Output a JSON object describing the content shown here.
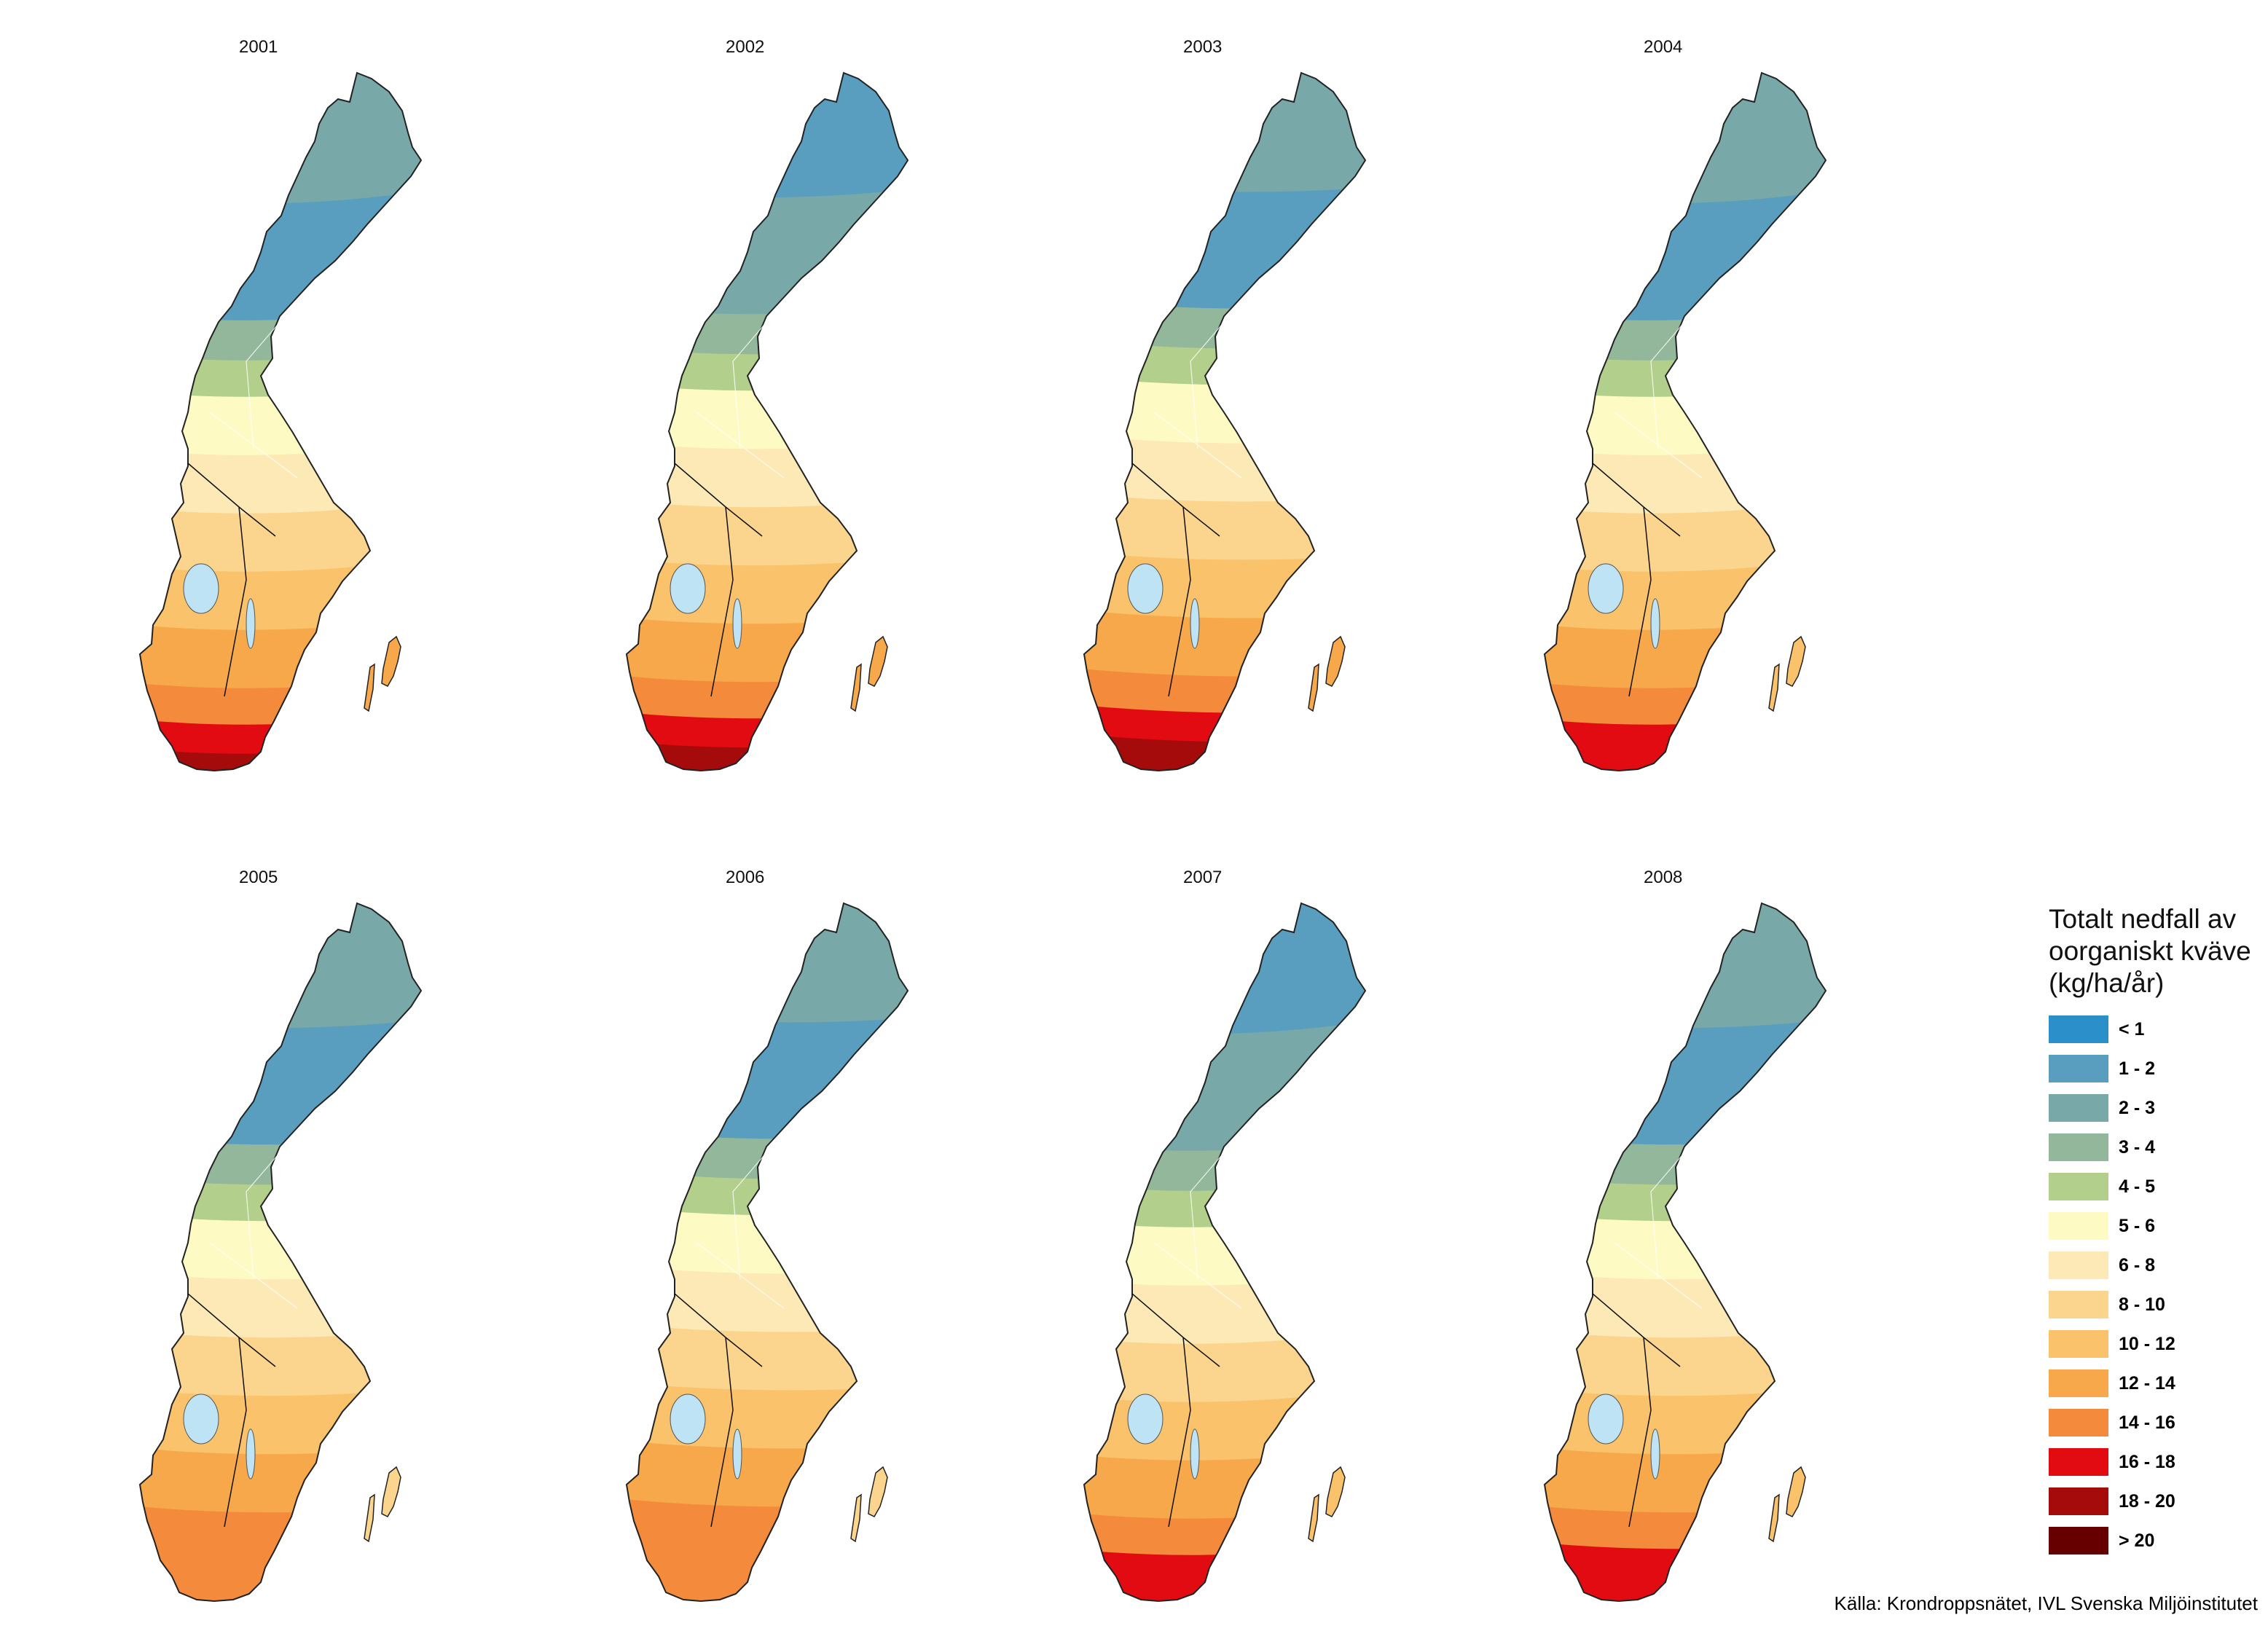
{
  "maps": [
    {
      "year": "2001",
      "bands": [
        "2 - 3",
        "1 - 2",
        "3 - 4",
        "4 - 5",
        "5 - 6",
        "6 - 8",
        "8 - 10",
        "10 - 12",
        "12 - 14",
        "14 - 16",
        "16 - 18",
        "18 - 20"
      ]
    },
    {
      "year": "2002",
      "bands": [
        "1 - 2",
        "2 - 3",
        "3 - 4",
        "4 - 5",
        "5 - 6",
        "6 - 8",
        "8 - 10",
        "10 - 12",
        "12 - 14",
        "14 - 16",
        "16 - 18",
        "18 - 20"
      ]
    },
    {
      "year": "2003",
      "bands": [
        "2 - 3",
        "1 - 2",
        "3 - 4",
        "4 - 5",
        "5 - 6",
        "6 - 8",
        "8 - 10",
        "10 - 12",
        "12 - 14",
        "14 - 16",
        "16 - 18",
        "18 - 20"
      ]
    },
    {
      "year": "2004",
      "bands": [
        "2 - 3",
        "1 - 2",
        "3 - 4",
        "4 - 5",
        "5 - 6",
        "6 - 8",
        "8 - 10",
        "10 - 12",
        "12 - 14",
        "14 - 16",
        "16 - 18"
      ]
    },
    {
      "year": "2005",
      "bands": [
        "2 - 3",
        "1 - 2",
        "3 - 4",
        "4 - 5",
        "5 - 6",
        "6 - 8",
        "8 - 10",
        "10 - 12",
        "12 - 14",
        "14 - 16"
      ]
    },
    {
      "year": "2006",
      "bands": [
        "2 - 3",
        "1 - 2",
        "3 - 4",
        "4 - 5",
        "5 - 6",
        "6 - 8",
        "8 - 10",
        "10 - 12",
        "12 - 14",
        "14 - 16"
      ]
    },
    {
      "year": "2007",
      "bands": [
        "1 - 2",
        "2 - 3",
        "3 - 4",
        "4 - 5",
        "5 - 6",
        "6 - 8",
        "8 - 10",
        "10 - 12",
        "12 - 14",
        "14 - 16",
        "16 - 18"
      ]
    },
    {
      "year": "2008",
      "bands": [
        "2 - 3",
        "1 - 2",
        "3 - 4",
        "4 - 5",
        "5 - 6",
        "6 - 8",
        "8 - 10",
        "10 - 12",
        "12 - 14",
        "14 - 16",
        "16 - 18"
      ]
    }
  ],
  "legend": {
    "title_line1": "Totalt nedfall av",
    "title_line2": "oorganiskt kväve",
    "title_line3": "(kg/ha/år)",
    "items": [
      {
        "label": "< 1",
        "color": "#2b8fc9"
      },
      {
        "label": "1 - 2",
        "color": "#5a9ebf"
      },
      {
        "label": "2 - 3",
        "color": "#78a8a8"
      },
      {
        "label": "3 - 4",
        "color": "#93b79a"
      },
      {
        "label": "4 - 5",
        "color": "#b2cf8c"
      },
      {
        "label": "5 - 6",
        "color": "#fdfbc3"
      },
      {
        "label": "6 - 8",
        "color": "#fde9b5"
      },
      {
        "label": "8 - 10",
        "color": "#fbd48d"
      },
      {
        "label": "10 - 12",
        "color": "#f9c26b"
      },
      {
        "label": "12 - 14",
        "color": "#f7a84a"
      },
      {
        "label": "14 - 16",
        "color": "#f48a3c"
      },
      {
        "label": "16 - 18",
        "color": "#e20b12"
      },
      {
        "label": "18 - 20",
        "color": "#a60b0b"
      },
      {
        "label": "> 20",
        "color": "#660000"
      }
    ]
  },
  "source": "Källa: Krondroppsnätet, IVL Svenska Miljöinstitutet"
}
